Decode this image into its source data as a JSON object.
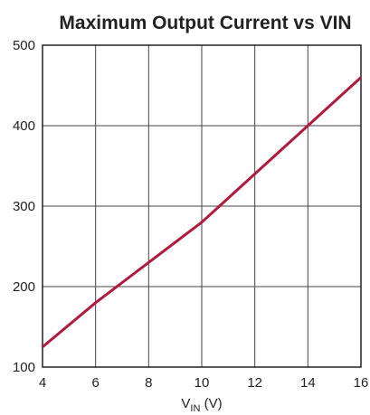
{
  "chart_data": {
    "type": "line",
    "title": "Maximum Output Current vs VIN",
    "xlabel": {
      "main": "V",
      "sub": "IN",
      "tail": " (V)"
    },
    "ylabel": "",
    "xlim": [
      4,
      16
    ],
    "ylim": [
      100,
      500
    ],
    "xticks": [
      "4",
      "6",
      "8",
      "10",
      "12",
      "14",
      "16"
    ],
    "yticks": [
      "100",
      "200",
      "300",
      "400",
      "500"
    ],
    "grid": true,
    "series": [
      {
        "color": "#b01a3c",
        "x": [
          4,
          6,
          8,
          10,
          12,
          14,
          16
        ],
        "y": [
          125,
          180,
          230,
          280,
          340,
          400,
          460
        ]
      }
    ]
  }
}
